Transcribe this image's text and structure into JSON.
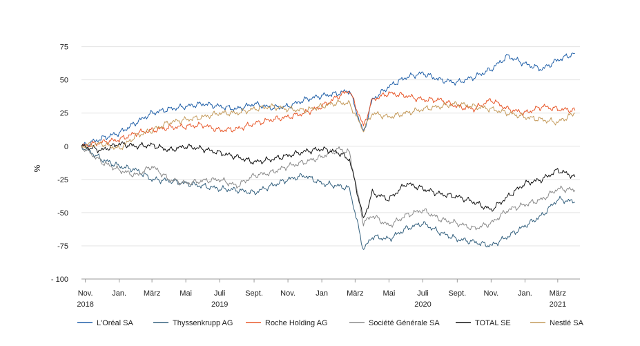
{
  "chart_data": {
    "type": "line",
    "title": "",
    "ylabel": "%",
    "xlabel": "",
    "ylim": [
      -100,
      80
    ],
    "yticks": [
      {
        "value": 75,
        "label": "75"
      },
      {
        "value": 50,
        "label": "50"
      },
      {
        "value": 25,
        "label": "25"
      },
      {
        "value": 0,
        "label": "0"
      },
      {
        "value": -25,
        "label": "-25"
      },
      {
        "value": -50,
        "label": "-50"
      },
      {
        "value": -75,
        "label": "-75"
      },
      {
        "value": -100,
        "label": "- 100"
      }
    ],
    "xlim": [
      "2018-10-25",
      "2021-04-10"
    ],
    "xticks": [
      {
        "date": "2018-11-01",
        "label": "Nov.",
        "year": "2018"
      },
      {
        "date": "2019-01-01",
        "label": "Jan.",
        "year": ""
      },
      {
        "date": "2019-03-01",
        "label": "März",
        "year": ""
      },
      {
        "date": "2019-05-01",
        "label": "Mai",
        "year": ""
      },
      {
        "date": "2019-07-01",
        "label": "Juli",
        "year": "2019"
      },
      {
        "date": "2019-09-01",
        "label": "Sept.",
        "year": ""
      },
      {
        "date": "2019-11-01",
        "label": "Nov.",
        "year": ""
      },
      {
        "date": "2020-01-01",
        "label": "Jan",
        "year": ""
      },
      {
        "date": "2020-03-01",
        "label": "März",
        "year": ""
      },
      {
        "date": "2020-05-01",
        "label": "Mai",
        "year": ""
      },
      {
        "date": "2020-07-01",
        "label": "Juli",
        "year": "2020"
      },
      {
        "date": "2020-09-01",
        "label": "Sept.",
        "year": ""
      },
      {
        "date": "2020-11-01",
        "label": "Nov.",
        "year": ""
      },
      {
        "date": "2021-01-01",
        "label": "Jan.",
        "year": ""
      },
      {
        "date": "2021-03-01",
        "label": "März",
        "year": "2021"
      }
    ],
    "grid": "horizontal",
    "legend_position": "bottom",
    "x": [
      "2018-10-25",
      "2018-12-01",
      "2019-01-01",
      "2019-02-01",
      "2019-03-01",
      "2019-04-01",
      "2019-05-01",
      "2019-06-01",
      "2019-07-01",
      "2019-08-01",
      "2019-09-01",
      "2019-10-01",
      "2019-11-01",
      "2019-12-01",
      "2020-01-01",
      "2020-02-01",
      "2020-02-20",
      "2020-03-16",
      "2020-04-01",
      "2020-05-01",
      "2020-06-01",
      "2020-07-01",
      "2020-08-01",
      "2020-09-01",
      "2020-10-01",
      "2020-11-01",
      "2020-12-01",
      "2021-01-01",
      "2021-02-01",
      "2021-03-01",
      "2021-04-01"
    ],
    "series": [
      {
        "name": "L'Oréal SA",
        "color": "#1f5fa8",
        "values": [
          0,
          6,
          10,
          18,
          25,
          28,
          30,
          32,
          30,
          28,
          32,
          29,
          30,
          35,
          38,
          40,
          42,
          10,
          35,
          45,
          52,
          55,
          50,
          48,
          52,
          58,
          68,
          62,
          58,
          65,
          70
        ]
      },
      {
        "name": "Thyssenkrupp AG",
        "color": "#33607e",
        "values": [
          0,
          -10,
          -15,
          -18,
          -25,
          -26,
          -28,
          -30,
          -32,
          -33,
          -35,
          -30,
          -25,
          -22,
          -28,
          -30,
          -32,
          -78,
          -68,
          -70,
          -62,
          -58,
          -65,
          -70,
          -72,
          -75,
          -68,
          -60,
          -52,
          -40,
          -42
        ]
      },
      {
        "name": "Roche Holding AG",
        "color": "#e8582a",
        "values": [
          0,
          3,
          5,
          10,
          12,
          14,
          15,
          16,
          12,
          13,
          17,
          20,
          22,
          25,
          30,
          38,
          42,
          15,
          35,
          40,
          38,
          35,
          35,
          30,
          28,
          35,
          28,
          25,
          30,
          28,
          27
        ]
      },
      {
        "name": "Société Générale SA",
        "color": "#8a8a8a",
        "values": [
          0,
          -12,
          -18,
          -22,
          -15,
          -25,
          -28,
          -26,
          -25,
          -30,
          -22,
          -20,
          -15,
          -12,
          -8,
          -2,
          -5,
          -58,
          -52,
          -60,
          -52,
          -48,
          -55,
          -58,
          -62,
          -58,
          -48,
          -44,
          -40,
          -32,
          -33
        ]
      },
      {
        "name": "TOTAL SE",
        "color": "#111111",
        "values": [
          0,
          -3,
          2,
          0,
          1,
          -3,
          0,
          -2,
          -5,
          -8,
          -12,
          -10,
          -7,
          -4,
          -2,
          -5,
          -10,
          -55,
          -35,
          -40,
          -28,
          -32,
          -36,
          -38,
          -42,
          -48,
          -38,
          -28,
          -25,
          -18,
          -23
        ]
      },
      {
        "name": "Nestlé SA",
        "color": "#c49a5a",
        "values": [
          0,
          2,
          -2,
          8,
          12,
          18,
          20,
          22,
          25,
          25,
          28,
          30,
          28,
          27,
          30,
          33,
          32,
          12,
          25,
          22,
          25,
          28,
          30,
          32,
          30,
          28,
          25,
          22,
          20,
          18,
          25
        ]
      }
    ]
  }
}
